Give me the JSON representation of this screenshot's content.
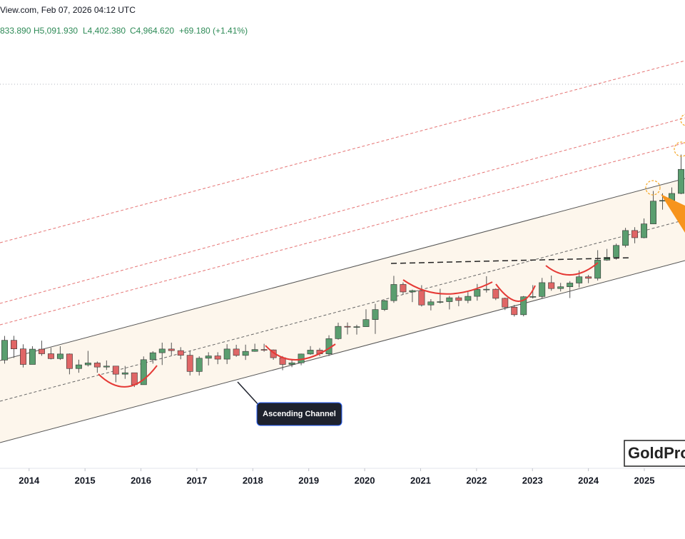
{
  "header": {
    "source": "View.com, Feb 07, 2026 04:12 UTC",
    "ohlc": [
      "833.890",
      "H5,091.930",
      "L4,402.380",
      "C4,964.620",
      "+69.180 (+1.41%)"
    ]
  },
  "chart_data": {
    "type": "candlestick",
    "log_scale": true,
    "up_color": "#5a9e6f",
    "down_color": "#e06666",
    "xlim": [
      2013.48,
      2025.74
    ],
    "xticks": [
      2014,
      2015,
      2016,
      2017,
      2018,
      2019,
      2020,
      2021,
      2022,
      2023,
      2024,
      2025
    ],
    "ylim": [
      680,
      7000
    ],
    "candles": [
      [
        1235,
        1433,
        1208,
        1395
      ],
      [
        1395,
        1434,
        1251,
        1323
      ],
      [
        1323,
        1361,
        1180,
        1202
      ],
      [
        1202,
        1345,
        1202,
        1321
      ],
      [
        1321,
        1392,
        1268,
        1284
      ],
      [
        1284,
        1332,
        1240,
        1246
      ],
      [
        1246,
        1345,
        1236,
        1282
      ],
      [
        1282,
        1286,
        1131,
        1172
      ],
      [
        1172,
        1238,
        1142,
        1199
      ],
      [
        1199,
        1307,
        1187,
        1213
      ],
      [
        1213,
        1224,
        1142,
        1183
      ],
      [
        1183,
        1232,
        1162,
        1190
      ],
      [
        1190,
        1191,
        1077,
        1132
      ],
      [
        1132,
        1191,
        1100,
        1142
      ],
      [
        1142,
        1142,
        1046,
        1061
      ],
      [
        1061,
        1263,
        1061,
        1238
      ],
      [
        1238,
        1304,
        1208,
        1292
      ],
      [
        1292,
        1375,
        1198,
        1322
      ],
      [
        1322,
        1375,
        1271,
        1309
      ],
      [
        1309,
        1337,
        1241,
        1272
      ],
      [
        1272,
        1308,
        1123,
        1151
      ],
      [
        1151,
        1264,
        1123,
        1249
      ],
      [
        1249,
        1296,
        1195,
        1267
      ],
      [
        1267,
        1296,
        1204,
        1242
      ],
      [
        1242,
        1362,
        1205,
        1322
      ],
      [
        1322,
        1357,
        1260,
        1271
      ],
      [
        1271,
        1358,
        1236,
        1303
      ],
      [
        1303,
        1366,
        1300,
        1318
      ],
      [
        1318,
        1365,
        1300,
        1315
      ],
      [
        1315,
        1318,
        1237,
        1253
      ],
      [
        1253,
        1266,
        1160,
        1202
      ],
      [
        1202,
        1243,
        1182,
        1214
      ],
      [
        1214,
        1285,
        1196,
        1282
      ],
      [
        1282,
        1346,
        1276,
        1313
      ],
      [
        1313,
        1330,
        1266,
        1283
      ],
      [
        1283,
        1439,
        1266,
        1409
      ],
      [
        1409,
        1555,
        1400,
        1520
      ],
      [
        1520,
        1557,
        1446,
        1513
      ],
      [
        1513,
        1535,
        1445,
        1517
      ],
      [
        1517,
        1689,
        1517,
        1585
      ],
      [
        1585,
        1747,
        1451,
        1686
      ],
      [
        1686,
        1789,
        1671,
        1781
      ],
      [
        1781,
        2075,
        1757,
        1968
      ],
      [
        1968,
        1992,
        1848,
        1879
      ],
      [
        1879,
        1906,
        1765,
        1895
      ],
      [
        1895,
        1959,
        1718,
        1734
      ],
      [
        1734,
        1798,
        1677,
        1768
      ],
      [
        1768,
        1916,
        1750,
        1770
      ],
      [
        1770,
        1834,
        1687,
        1813
      ],
      [
        1813,
        1834,
        1721,
        1783
      ],
      [
        1783,
        1877,
        1753,
        1829
      ],
      [
        1829,
        1974,
        1781,
        1909
      ],
      [
        1909,
        2070,
        1872,
        1911
      ],
      [
        1911,
        1920,
        1787,
        1807
      ],
      [
        1807,
        1814,
        1681,
        1711
      ],
      [
        1711,
        1735,
        1615,
        1633
      ],
      [
        1633,
        1833,
        1617,
        1824
      ],
      [
        1824,
        1960,
        1805,
        1827
      ],
      [
        1827,
        2049,
        1804,
        1990
      ],
      [
        1990,
        2079,
        1893,
        1919
      ],
      [
        1919,
        1987,
        1885,
        1940
      ],
      [
        1940,
        2009,
        1810,
        1985
      ],
      [
        1985,
        2146,
        1931,
        2063
      ],
      [
        2063,
        2088,
        1984,
        2044
      ],
      [
        2044,
        2431,
        2016,
        2286
      ],
      [
        2286,
        2450,
        2277,
        2326
      ],
      [
        2326,
        2531,
        2293,
        2503
      ],
      [
        2503,
        2790,
        2472,
        2744
      ],
      [
        2744,
        2801,
        2536,
        2625
      ],
      [
        2625,
        2956,
        2615,
        2858
      ],
      [
        2858,
        3500,
        2856,
        3288
      ],
      [
        3288,
        3451,
        3120,
        3303
      ],
      [
        3303,
        3578,
        3268,
        3448
      ],
      [
        3448,
        4381,
        3432,
        4000
      ]
    ],
    "annotations": {
      "callout": "Ascending Channel",
      "watermark": "GoldPro"
    }
  }
}
